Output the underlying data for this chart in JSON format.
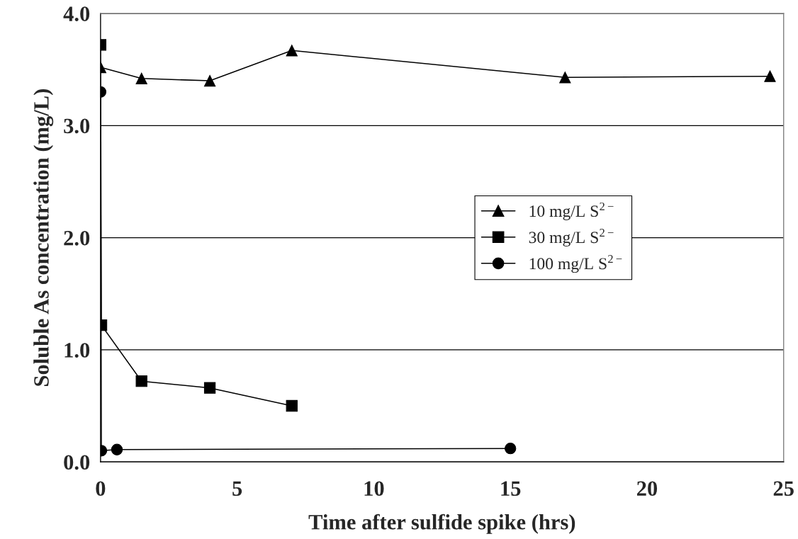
{
  "chart_data": {
    "type": "line",
    "xlabel": "Time after sulfide spike (hrs)",
    "ylabel": "Soluble As concentration (mg/L)",
    "xlim": [
      0,
      25
    ],
    "xticks": [
      0,
      5,
      10,
      15,
      20,
      25
    ],
    "ylim": [
      0,
      4
    ],
    "yticks": [
      {
        "value": 0,
        "label": "0.0"
      },
      {
        "value": 1,
        "label": "1.0"
      },
      {
        "value": 2,
        "label": "2.0"
      },
      {
        "value": 3,
        "label": "3.0"
      },
      {
        "value": 4,
        "label": "4.0"
      }
    ],
    "grid": "y",
    "legend": "right",
    "line_style": "solid",
    "series": [
      {
        "name": "10 mg/L S$^{2−}$",
        "color": "#000000",
        "marker": "triangle",
        "x": [
          0,
          1.5,
          4,
          7,
          17,
          24.5
        ],
        "values": [
          3.52,
          3.42,
          3.4,
          3.67,
          3.43,
          3.44
        ]
      },
      {
        "name": "30 mg/L S$^{2−}$",
        "color": "#000000",
        "marker": "square",
        "x": [
          0,
          0.03,
          1.5,
          4,
          7
        ],
        "values": [
          3.72,
          1.22,
          0.72,
          0.66,
          0.5
        ]
      },
      {
        "name": "100 mg/L S$^{2−}$",
        "color": "#000000",
        "marker": "circle",
        "x": [
          0,
          0.03,
          0.6,
          15
        ],
        "values": [
          3.3,
          0.1,
          0.11,
          0.12
        ]
      }
    ]
  }
}
